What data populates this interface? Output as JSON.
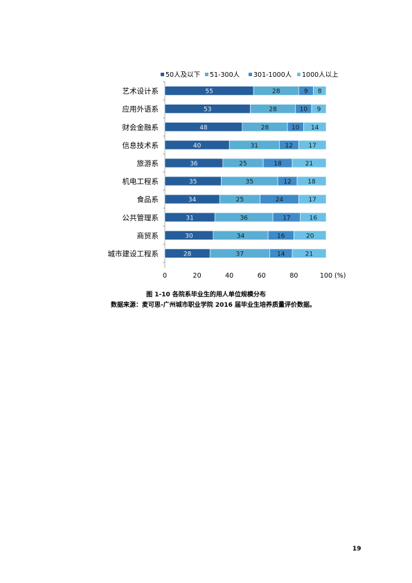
{
  "chart_data": {
    "type": "bar",
    "orientation": "horizontal",
    "stacked": true,
    "title": "",
    "xlabel": "",
    "ylabel": "",
    "unit_label": "(%)",
    "xlim": [
      0,
      100
    ],
    "xticks": [
      "0",
      "20",
      "40",
      "60",
      "80",
      "100"
    ],
    "grid": false,
    "legend_position": "top",
    "categories": [
      "艺术设计系",
      "应用外语系",
      "财会金融系",
      "信息技术系",
      "旅游系",
      "机电工程系",
      "食品系",
      "公共管理系",
      "商贸系",
      "城市建设工程系"
    ],
    "series": [
      {
        "name": "50人及以下",
        "color": "#255e9b",
        "values": [
          55,
          53,
          48,
          40,
          36,
          35,
          34,
          31,
          30,
          28
        ]
      },
      {
        "name": "51-300人",
        "color": "#5aaed4",
        "values": [
          28,
          28,
          28,
          31,
          25,
          35,
          25,
          36,
          34,
          37
        ]
      },
      {
        "name": "301-1000人",
        "color": "#3f8bc9",
        "values": [
          9,
          10,
          10,
          12,
          18,
          12,
          24,
          17,
          16,
          14
        ]
      },
      {
        "name": "1000人以上",
        "color": "#6cc0e5",
        "values": [
          8,
          9,
          14,
          17,
          21,
          18,
          17,
          16,
          20,
          21
        ]
      }
    ]
  },
  "caption": {
    "title": "图 1-10 各院系毕业生的用人单位规模分布",
    "source": "数据来源：麦可思-广州城市职业学院 2016 届毕业生培养质量评价数据。"
  },
  "page_number": "19"
}
